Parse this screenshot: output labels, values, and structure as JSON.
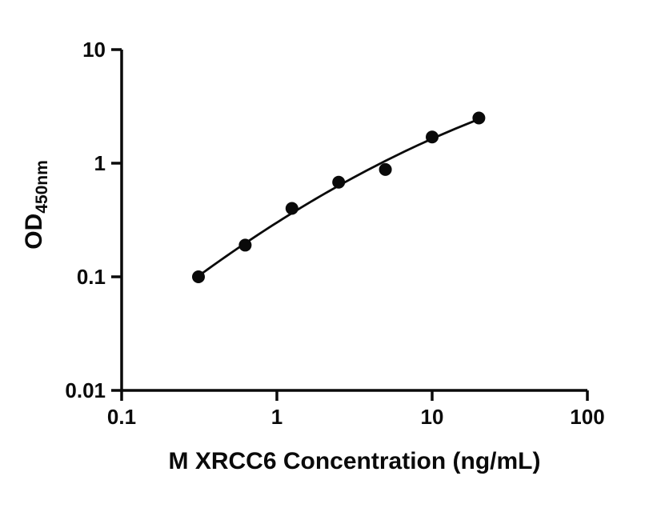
{
  "figure": {
    "background_color": "#ffffff",
    "ink_color": "#0a0a0a"
  },
  "chart_data": {
    "type": "scatter",
    "title": "",
    "xlabel": "M XRCC6 Concentration (ng/mL)",
    "ylabel": "OD",
    "ylabel_subscript": "450nm",
    "xscale": "log",
    "yscale": "log",
    "xlim": [
      0.1,
      100
    ],
    "ylim": [
      0.01,
      10
    ],
    "x": [
      0.3125,
      0.625,
      1.25,
      2.5,
      5,
      10,
      20
    ],
    "y": [
      0.1,
      0.19,
      0.4,
      0.68,
      0.88,
      1.7,
      2.5
    ],
    "x_ticks": [
      0.1,
      1,
      10,
      100
    ],
    "x_tick_labels": [
      "0.1",
      "1",
      "10",
      "100"
    ],
    "y_ticks": [
      0.01,
      0.1,
      1,
      10
    ],
    "y_tick_labels": [
      "0.01",
      "0.1",
      "1",
      "10"
    ],
    "grid": false,
    "legend": "none",
    "marker": "filled-circle",
    "marker_color": "#0a0a0a",
    "marker_radius": 8,
    "line_color": "#0a0a0a",
    "fit_line": "smooth curve through standards (quadratic fit in log-log space)"
  }
}
